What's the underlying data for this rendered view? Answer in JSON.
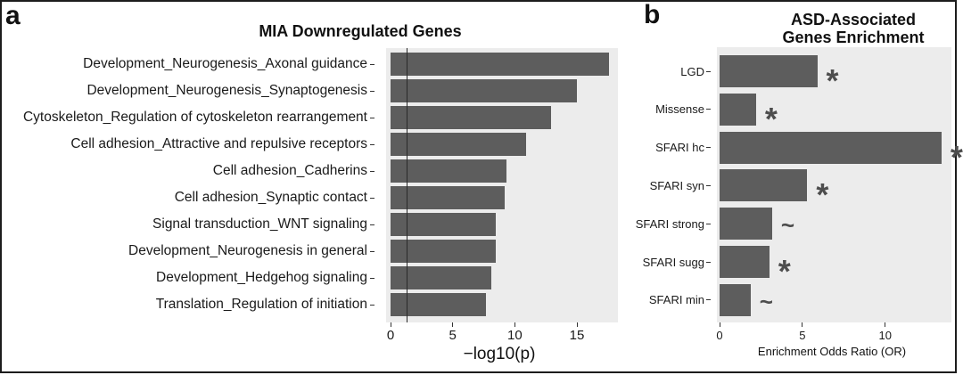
{
  "panels": {
    "a": {
      "letter": "a"
    },
    "b": {
      "letter": "b"
    }
  },
  "chart_data": [
    {
      "id": "mia-downregulated",
      "type": "bar",
      "orientation": "horizontal",
      "title": "MIA Downregulated Genes",
      "xlabel": "−log10(p)",
      "categories": [
        "Development_Neurogenesis_Axonal guidance",
        "Development_Neurogenesis_Synaptogenesis",
        "Cytoskeleton_Regulation of cytoskeleton rearrangement",
        "Cell adhesion_Attractive and repulsive receptors",
        "Cell adhesion_Cadherins",
        "Cell adhesion_Synaptic contact",
        "Signal transduction_WNT signaling",
        "Development_Neurogenesis in general",
        "Development_Hedgehog signaling",
        "Translation_Regulation of initiation"
      ],
      "values": [
        17.6,
        15.0,
        12.9,
        10.9,
        9.3,
        9.2,
        8.5,
        8.5,
        8.1,
        7.7
      ],
      "xticks": [
        0,
        5,
        10,
        15
      ],
      "xlim": [
        0,
        18.3
      ],
      "reference_line_x": 1.3,
      "grid": false,
      "legend": false,
      "bar_color": "#5d5d5d",
      "plot_bg_color": "#ececec"
    },
    {
      "id": "asd-enrichment",
      "type": "bar",
      "orientation": "horizontal",
      "title": "ASD-Associated Genes Enrichment",
      "title_lines": [
        "ASD-Associated",
        "Genes Enrichment"
      ],
      "xlabel": "Enrichment Odds Ratio (OR)",
      "categories": [
        "LGD",
        "Missense",
        "SFARI hc",
        "SFARI syn",
        "SFARI strong",
        "SFARI sugg",
        "SFARI min"
      ],
      "values": [
        5.9,
        2.2,
        13.4,
        5.3,
        3.2,
        3.0,
        1.9
      ],
      "significance_markers": [
        "*",
        "*",
        "*",
        "*",
        "~",
        "*",
        "~"
      ],
      "xticks": [
        0,
        5,
        10
      ],
      "xlim": [
        0,
        14
      ],
      "grid": false,
      "legend": false,
      "bar_color": "#5d5d5d",
      "plot_bg_color": "#ececec",
      "marker_color": "#4d4d4d"
    }
  ]
}
